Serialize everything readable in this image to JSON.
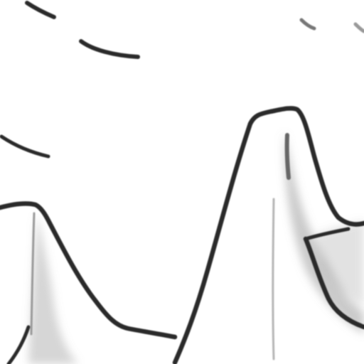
{
  "image": {
    "subject": "mountain-sketch",
    "style": "pencil-line-drawing",
    "colors": {
      "background": "#ffffff",
      "ink": "#2b2b2b",
      "shade": "#8a8a8a"
    }
  }
}
